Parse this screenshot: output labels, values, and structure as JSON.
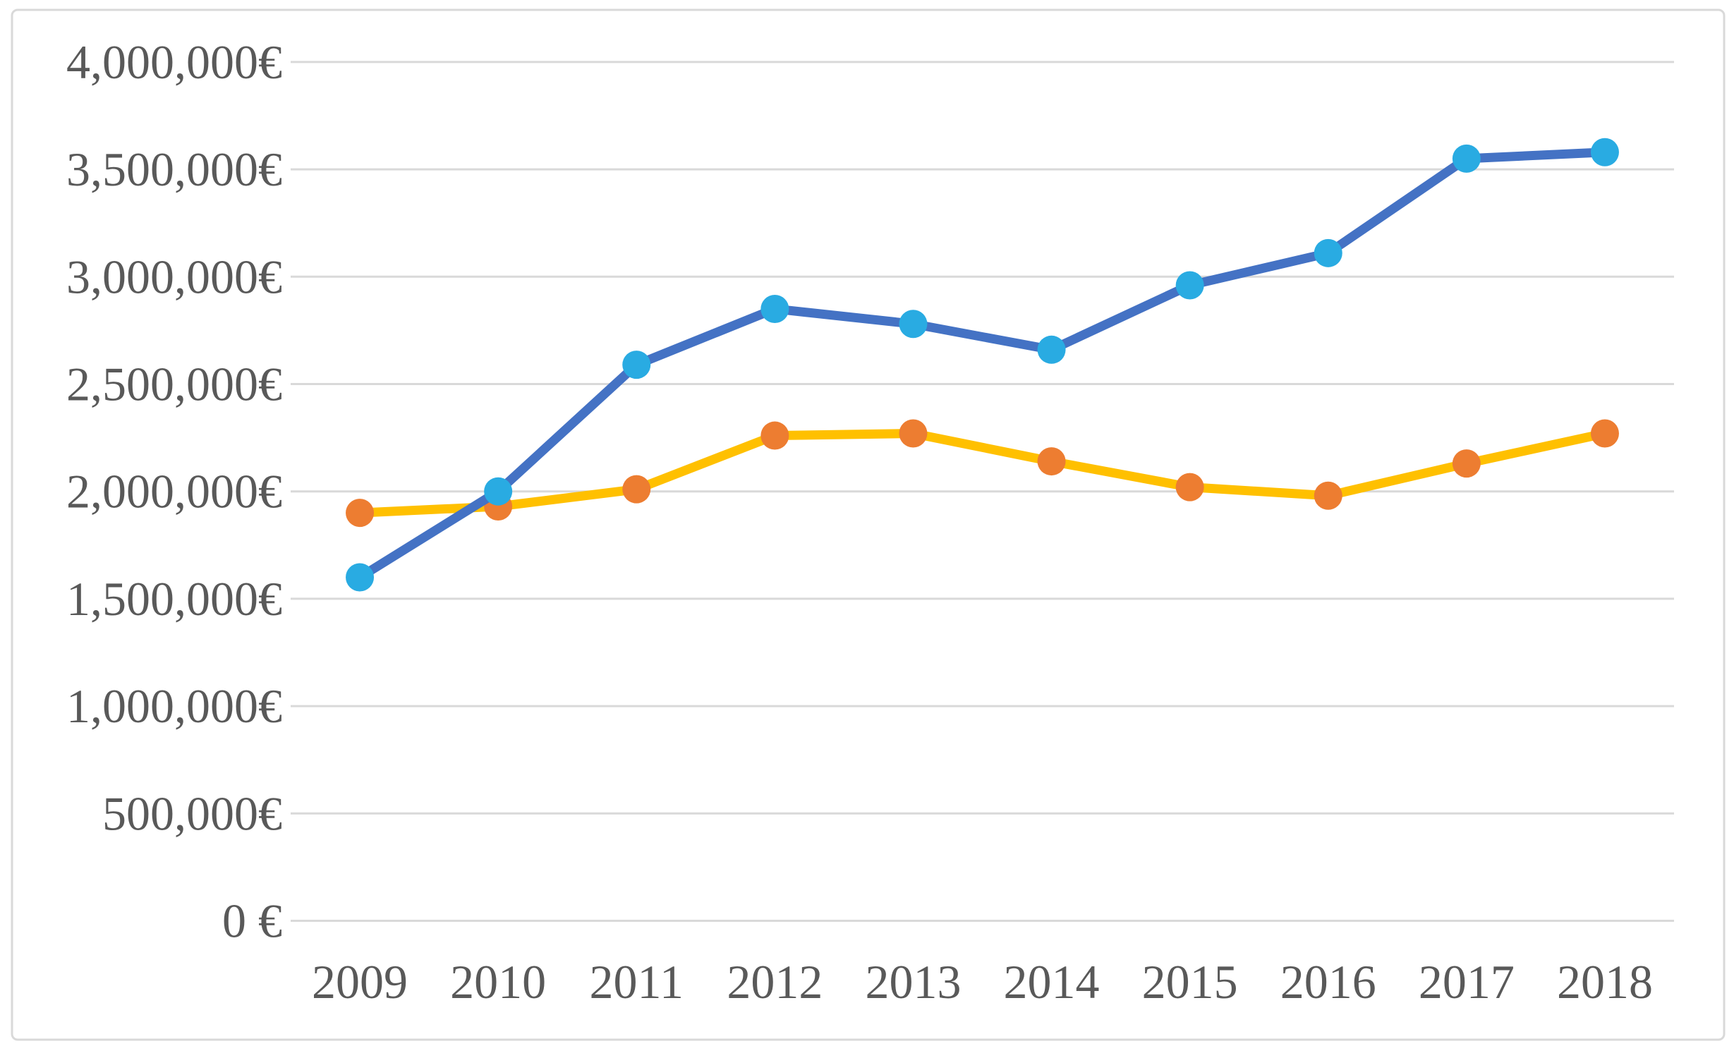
{
  "chart_data": {
    "type": "line",
    "categories": [
      "2009",
      "2010",
      "2011",
      "2012",
      "2013",
      "2014",
      "2015",
      "2016",
      "2017",
      "2018"
    ],
    "series": [
      {
        "name": "gold-line-orange-markers",
        "line_color": "#FFC000",
        "marker_color": "#ED7D31",
        "values": [
          1900000,
          1930000,
          2010000,
          2260000,
          2270000,
          2140000,
          2020000,
          1980000,
          2130000,
          2270000
        ]
      },
      {
        "name": "blue-line-cyan-markers",
        "line_color": "#4472C4",
        "marker_color": "#29ABE2",
        "values": [
          1600000,
          2000000,
          2590000,
          2850000,
          2780000,
          2660000,
          2960000,
          3110000,
          3550000,
          3580000
        ]
      }
    ],
    "title": "",
    "xlabel": "",
    "ylabel": "",
    "ylim": [
      0,
      4000000
    ],
    "y_tick_step": 500000,
    "y_tick_labels_top_to_bottom": [
      "4,000,000€",
      "3,500,000€",
      "3,000,000€",
      "2,500,000€",
      "2,000,000€",
      "1,500,000€",
      "1,000,000€",
      "500,000€",
      "0 €"
    ],
    "grid": true,
    "legend": "none"
  },
  "styles": {
    "background": "#FFFFFF",
    "border_color": "#D9D9D9",
    "grid_color": "#D9D9D9",
    "tick_text_color": "#595959"
  }
}
